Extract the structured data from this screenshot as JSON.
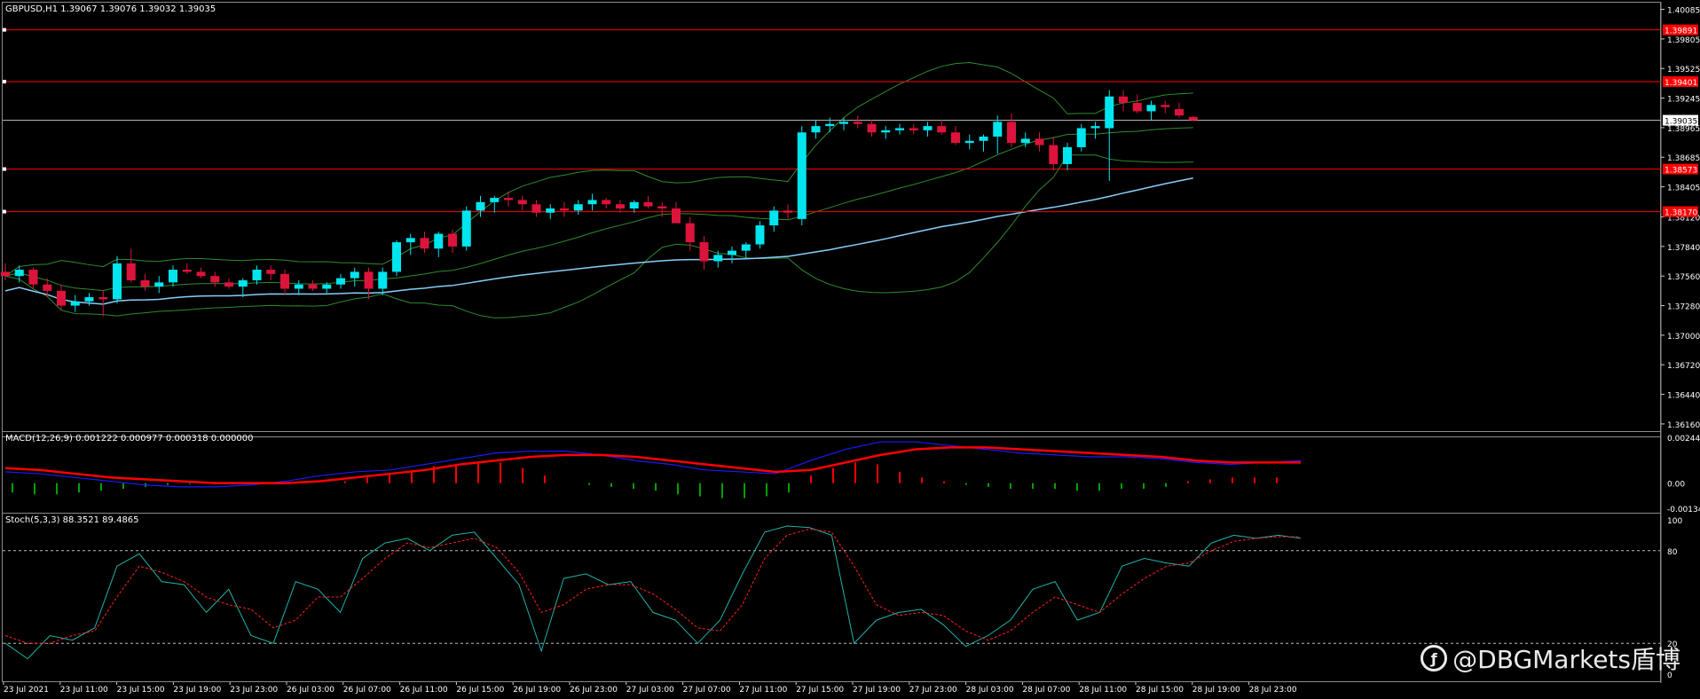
{
  "window": {
    "symbol_header": "GBPUSD,H1  1.39067 1.39076 1.39032 1.39035",
    "macd_header": "MACD(12,26,9) 0.001222 0.000977 0.000318 0.000000",
    "stoch_header": "Stoch(5,3,3) 88.3521 89.4865",
    "watermark": "@DBGMarkets盾博",
    "watermark_icon": "weibo-icon"
  },
  "colors": {
    "background": "#000000",
    "bull": "#00e5ee",
    "bear": "#dc143c",
    "bands": "#2e8b2e",
    "ma": "#87cefa",
    "level_line": "#ff0000",
    "macd_line": "#1a1aff",
    "signal_line": "#ff0000",
    "hist_pos": "#ff0000",
    "hist_neg": "#00a000",
    "stoch_main": "#20b2aa",
    "stoch_signal": "#ff2020"
  },
  "chart_data": [
    {
      "type": "candlestick",
      "title": "GBPUSD,H1",
      "ohlc_header": {
        "open": 1.39067,
        "high": 1.39076,
        "low": 1.39032,
        "close": 1.39035
      },
      "y_ticks": [
        "1.40085",
        "1.39805",
        "1.39525",
        "1.39245",
        "1.38965",
        "1.38685",
        "1.38405",
        "1.38120",
        "1.37840",
        "1.37560",
        "1.37280",
        "1.37000",
        "1.36720",
        "1.36440",
        "1.36160"
      ],
      "ylim": [
        1.3605,
        1.4014
      ],
      "current_price": "1.39035",
      "levels": [
        {
          "label": "1.39891",
          "value": 1.39891
        },
        {
          "label": "1.39401",
          "value": 1.39401
        },
        {
          "label": "1.38573",
          "value": 1.38573
        },
        {
          "label": "1.38170",
          "value": 1.3817
        }
      ],
      "candles": [
        [
          1.376,
          1.3768,
          1.3752,
          1.3756
        ],
        [
          1.3756,
          1.3766,
          1.375,
          1.3762
        ],
        [
          1.3762,
          1.3764,
          1.3744,
          1.3748
        ],
        [
          1.3748,
          1.3754,
          1.3736,
          1.3742
        ],
        [
          1.3742,
          1.3748,
          1.3724,
          1.3728
        ],
        [
          1.3728,
          1.3738,
          1.3722,
          1.3732
        ],
        [
          1.3732,
          1.374,
          1.3728,
          1.3736
        ],
        [
          1.3736,
          1.3742,
          1.3718,
          1.3734
        ],
        [
          1.3734,
          1.3775,
          1.373,
          1.3768
        ],
        [
          1.3768,
          1.3782,
          1.375,
          1.3752
        ],
        [
          1.3752,
          1.3758,
          1.3742,
          1.3746
        ],
        [
          1.3746,
          1.3756,
          1.374,
          1.375
        ],
        [
          1.375,
          1.3766,
          1.3746,
          1.3762
        ],
        [
          1.3762,
          1.3768,
          1.3758,
          1.376
        ],
        [
          1.376,
          1.3764,
          1.3754,
          1.3756
        ],
        [
          1.3756,
          1.376,
          1.3746,
          1.375
        ],
        [
          1.375,
          1.3754,
          1.3744,
          1.3746
        ],
        [
          1.3746,
          1.3754,
          1.3736,
          1.3752
        ],
        [
          1.3752,
          1.3766,
          1.3748,
          1.3762
        ],
        [
          1.3762,
          1.3766,
          1.3752,
          1.3758
        ],
        [
          1.3758,
          1.3762,
          1.3738,
          1.3744
        ],
        [
          1.3744,
          1.3752,
          1.3738,
          1.3748
        ],
        [
          1.3748,
          1.3752,
          1.3742,
          1.3744
        ],
        [
          1.3744,
          1.375,
          1.374,
          1.3748
        ],
        [
          1.3748,
          1.3758,
          1.3744,
          1.3754
        ],
        [
          1.3754,
          1.3764,
          1.3746,
          1.376
        ],
        [
          1.376,
          1.3764,
          1.3734,
          1.3744
        ],
        [
          1.3744,
          1.3764,
          1.3738,
          1.376
        ],
        [
          1.376,
          1.379,
          1.3756,
          1.3788
        ],
        [
          1.3788,
          1.3796,
          1.3776,
          1.3792
        ],
        [
          1.3792,
          1.3798,
          1.3778,
          1.3782
        ],
        [
          1.3782,
          1.3798,
          1.3774,
          1.3796
        ],
        [
          1.3796,
          1.38,
          1.3778,
          1.3784
        ],
        [
          1.3784,
          1.3822,
          1.378,
          1.3818
        ],
        [
          1.3818,
          1.3832,
          1.3812,
          1.3826
        ],
        [
          1.3826,
          1.3832,
          1.3816,
          1.383
        ],
        [
          1.383,
          1.3836,
          1.3822,
          1.3828
        ],
        [
          1.3828,
          1.3832,
          1.3818,
          1.3824
        ],
        [
          1.3824,
          1.3828,
          1.3812,
          1.3816
        ],
        [
          1.3816,
          1.3824,
          1.381,
          1.382
        ],
        [
          1.382,
          1.3826,
          1.3812,
          1.3818
        ],
        [
          1.3818,
          1.3828,
          1.3814,
          1.3824
        ],
        [
          1.3824,
          1.3834,
          1.3818,
          1.3828
        ],
        [
          1.3828,
          1.383,
          1.382,
          1.3824
        ],
        [
          1.3824,
          1.3828,
          1.3816,
          1.382
        ],
        [
          1.382,
          1.3828,
          1.3816,
          1.3826
        ],
        [
          1.3826,
          1.3832,
          1.382,
          1.3822
        ],
        [
          1.3822,
          1.3826,
          1.3812,
          1.382
        ],
        [
          1.382,
          1.3826,
          1.381,
          1.3806
        ],
        [
          1.3806,
          1.3812,
          1.378,
          1.3788
        ],
        [
          1.3788,
          1.3794,
          1.3762,
          1.377
        ],
        [
          1.377,
          1.378,
          1.3764,
          1.3776
        ],
        [
          1.3776,
          1.3784,
          1.3768,
          1.378
        ],
        [
          1.378,
          1.3788,
          1.3772,
          1.3786
        ],
        [
          1.3786,
          1.3808,
          1.3782,
          1.3804
        ],
        [
          1.3804,
          1.3822,
          1.3798,
          1.3818
        ],
        [
          1.3818,
          1.3824,
          1.381,
          1.3816
        ],
        [
          1.381,
          1.3898,
          1.3804,
          1.3892
        ],
        [
          1.3892,
          1.3904,
          1.3886,
          1.3898
        ],
        [
          1.3898,
          1.3906,
          1.3892,
          1.39
        ],
        [
          1.39,
          1.3906,
          1.3894,
          1.3902
        ],
        [
          1.3902,
          1.3908,
          1.3896,
          1.39
        ],
        [
          1.39,
          1.3904,
          1.3888,
          1.3892
        ],
        [
          1.3892,
          1.3898,
          1.3886,
          1.3894
        ],
        [
          1.3894,
          1.39,
          1.389,
          1.3896
        ],
        [
          1.3896,
          1.39,
          1.389,
          1.3894
        ],
        [
          1.3894,
          1.3902,
          1.3888,
          1.3898
        ],
        [
          1.3898,
          1.3904,
          1.389,
          1.3892
        ],
        [
          1.3892,
          1.3898,
          1.388,
          1.3882
        ],
        [
          1.3882,
          1.389,
          1.3876,
          1.3884
        ],
        [
          1.3884,
          1.389,
          1.3874,
          1.3888
        ],
        [
          1.3888,
          1.3908,
          1.3872,
          1.3902
        ],
        [
          1.3902,
          1.391,
          1.3878,
          1.3882
        ],
        [
          1.3882,
          1.3892,
          1.3878,
          1.3886
        ],
        [
          1.3886,
          1.3892,
          1.3874,
          1.388
        ],
        [
          1.388,
          1.3888,
          1.3856,
          1.3862
        ],
        [
          1.3862,
          1.3882,
          1.3856,
          1.3878
        ],
        [
          1.3878,
          1.39,
          1.3874,
          1.3896
        ],
        [
          1.3896,
          1.3902,
          1.3886,
          1.3898
        ],
        [
          1.3896,
          1.3932,
          1.3846,
          1.3926
        ],
        [
          1.3926,
          1.3932,
          1.3912,
          1.392
        ],
        [
          1.392,
          1.3928,
          1.391,
          1.3912
        ],
        [
          1.3912,
          1.3922,
          1.3904,
          1.3918
        ],
        [
          1.3918,
          1.3922,
          1.391,
          1.3916
        ],
        [
          1.3914,
          1.392,
          1.3906,
          1.3908
        ],
        [
          1.39067,
          1.39076,
          1.39032,
          1.39035
        ]
      ],
      "x_tick_labels": [
        "23 Jul 2021",
        "23 Jul 11:00",
        "23 Jul 15:00",
        "23 Jul 19:00",
        "23 Jul 23:00",
        "26 Jul 03:00",
        "26 Jul 07:00",
        "26 Jul 11:00",
        "26 Jul 15:00",
        "26 Jul 19:00",
        "26 Jul 23:00",
        "27 Jul 03:00",
        "27 Jul 07:00",
        "27 Jul 11:00",
        "27 Jul 15:00",
        "27 Jul 19:00",
        "27 Jul 23:00",
        "28 Jul 03:00",
        "28 Jul 07:00",
        "28 Jul 11:00",
        "28 Jul 15:00",
        "28 Jul 19:00",
        "28 Jul 23:00"
      ]
    },
    {
      "type": "macd",
      "title": "MACD(12,26,9)",
      "values": {
        "main": 0.001222,
        "signal": 0.000977,
        "histogram": 0.000318,
        "extra": 0.0
      },
      "y_ticks": [
        "0.002447",
        "0.00",
        "-0.001343"
      ],
      "ylim": [
        -0.00148,
        0.00258
      ],
      "macd_points": [
        0.0006,
        0.0005,
        0.0003,
        0.0001,
        -0.0001,
        -0.0002,
        -0.0002,
        -0.0001,
        0.0001,
        0.0004,
        0.0006,
        0.0007,
        0.001,
        0.0013,
        0.0016,
        0.0017,
        0.0017,
        0.0015,
        0.0012,
        0.001,
        0.0007,
        0.0006,
        0.0005,
        0.0012,
        0.0018,
        0.0022,
        0.0022,
        0.002,
        0.0018,
        0.0016,
        0.0015,
        0.0014,
        0.0014,
        0.0013,
        0.0011,
        0.001,
        0.0011,
        0.0012
      ],
      "signal_points": [
        0.0008,
        0.0007,
        0.0005,
        0.0003,
        0.0002,
        0.0001,
        0.0,
        0.0,
        0.0,
        0.0001,
        0.0003,
        0.0005,
        0.0007,
        0.001,
        0.0012,
        0.0014,
        0.0015,
        0.0015,
        0.0014,
        0.0012,
        0.001,
        0.0008,
        0.0006,
        0.0007,
        0.0011,
        0.0015,
        0.0018,
        0.0019,
        0.0019,
        0.0018,
        0.0017,
        0.0016,
        0.0015,
        0.0014,
        0.0012,
        0.0011,
        0.0011,
        0.0011
      ],
      "histogram": [
        -0.0005,
        -0.0006,
        -0.0006,
        -0.0005,
        -0.0004,
        -0.0003,
        -0.0002,
        -0.0001,
        -5e-05,
        0.0,
        0.0,
        -2e-05,
        -3e-05,
        -1e-05,
        0.0,
        0.0001,
        0.0003,
        0.0005,
        0.0007,
        0.0009,
        0.001,
        0.0011,
        0.0011,
        0.0008,
        0.0004,
        0.0,
        -0.0001,
        -0.0002,
        -0.0003,
        -0.0004,
        -0.0006,
        -0.0007,
        -0.0008,
        -0.0008,
        -0.0007,
        -0.0005,
        0.0004,
        0.0008,
        0.0011,
        0.001,
        0.0006,
        0.0003,
        0.0001,
        -0.0001,
        -0.0002,
        -0.0003,
        -0.0003,
        -0.0003,
        -0.0004,
        -0.0004,
        -0.0003,
        -0.0003,
        -0.0002,
        0.0001,
        0.0002,
        0.0003,
        0.0003,
        0.0003
      ]
    },
    {
      "type": "stochastic",
      "title": "Stoch(5,3,3)",
      "values": {
        "main": 88.3521,
        "signal": 89.4865
      },
      "y_ticks": [
        "100",
        "80",
        "20",
        "0"
      ],
      "ylim": [
        0,
        100
      ],
      "levels": [
        80,
        20
      ],
      "main_points": [
        20,
        10,
        25,
        22,
        30,
        70,
        78,
        60,
        58,
        40,
        55,
        25,
        20,
        60,
        55,
        40,
        75,
        85,
        88,
        80,
        90,
        92,
        75,
        58,
        15,
        62,
        65,
        58,
        60,
        40,
        35,
        20,
        35,
        65,
        92,
        96,
        95,
        90,
        20,
        35,
        40,
        42,
        32,
        18,
        25,
        35,
        55,
        60,
        35,
        40,
        70,
        75,
        72,
        70,
        85,
        90,
        88,
        90,
        88
      ],
      "signal_points": [
        25,
        20,
        20,
        25,
        28,
        50,
        70,
        66,
        60,
        50,
        45,
        42,
        30,
        35,
        50,
        50,
        62,
        75,
        85,
        82,
        85,
        88,
        82,
        66,
        40,
        45,
        55,
        58,
        58,
        52,
        42,
        30,
        28,
        45,
        75,
        90,
        94,
        92,
        70,
        45,
        38,
        40,
        38,
        28,
        22,
        28,
        40,
        50,
        45,
        40,
        52,
        62,
        70,
        72,
        80,
        86,
        88,
        89,
        89
      ]
    }
  ]
}
